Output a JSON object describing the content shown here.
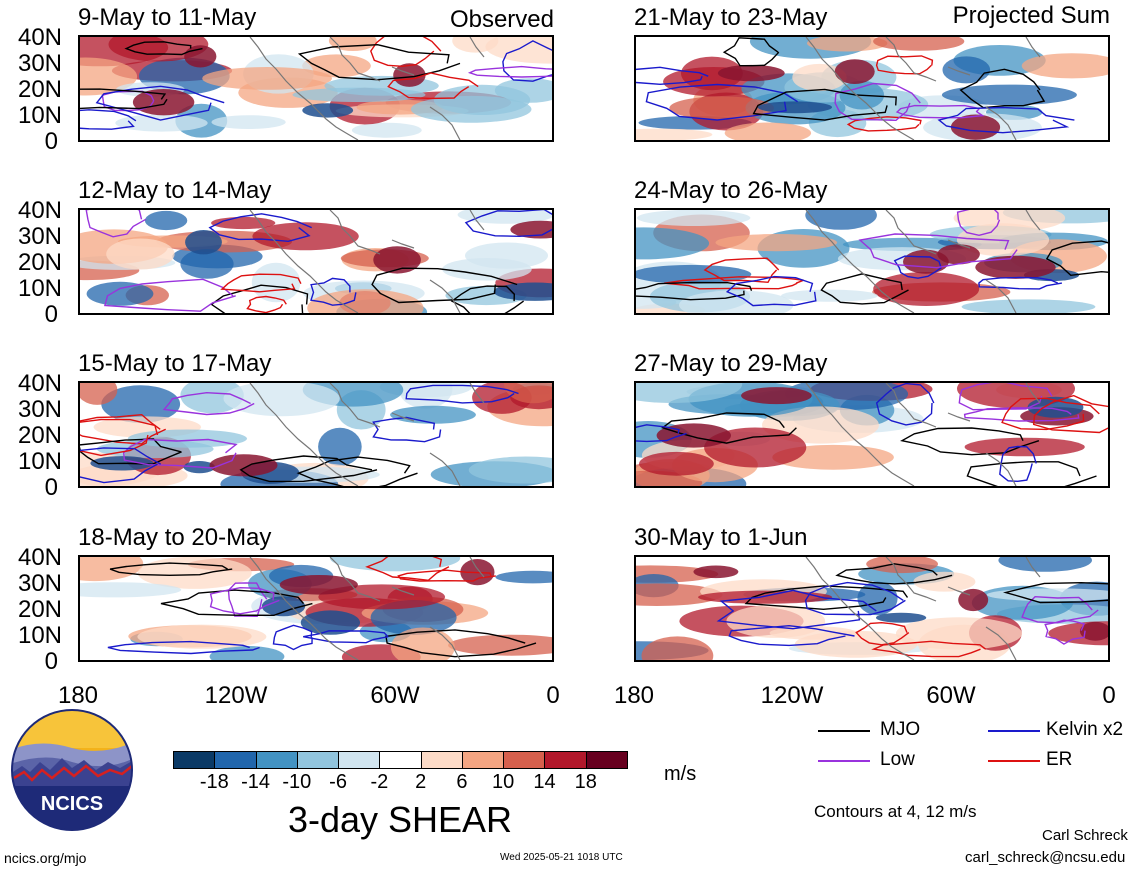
{
  "left_corner": "Observed",
  "right_corner": "Projected Sum",
  "panels": [
    {
      "title": "9-May to 11-May"
    },
    {
      "title": "21-May to 23-May"
    },
    {
      "title": "12-May to 14-May"
    },
    {
      "title": "24-May to 26-May"
    },
    {
      "title": "15-May to 17-May"
    },
    {
      "title": "27-May to 29-May"
    },
    {
      "title": "18-May to 20-May"
    },
    {
      "title": "30-May to 1-Jun"
    }
  ],
  "y_ticks": [
    "40N",
    "30N",
    "20N",
    "10N",
    "0"
  ],
  "x_ticks": [
    "180",
    "120W",
    "60W",
    "0"
  ],
  "colorbar": {
    "labels": [
      "-18",
      "-14",
      "-10",
      "-6",
      "-2",
      "2",
      "6",
      "10",
      "14",
      "18"
    ],
    "colors": [
      "#0b3a66",
      "#2166ac",
      "#4393c3",
      "#92c5de",
      "#d1e5f0",
      "#ffffff",
      "#fddbc7",
      "#f4a582",
      "#d6604d",
      "#b2182b",
      "#67001f"
    ],
    "units": "m/s",
    "title": "3-day SHEAR"
  },
  "legend": [
    {
      "label": "MJO",
      "color": "#000000"
    },
    {
      "label": "Kelvin x2",
      "color": "#1a1acc"
    },
    {
      "label": "Low",
      "color": "#9933dd"
    },
    {
      "label": "ER",
      "color": "#dd1111"
    }
  ],
  "contours_note": "Contours at 4, 12 m/s",
  "author": "Carl Schreck",
  "email": "carl_schreck@ncsu.edu",
  "website": "ncics.org/mjo",
  "timestamp": "Wed 2025-05-21 1018 UTC",
  "logo_text": "NCICS"
}
